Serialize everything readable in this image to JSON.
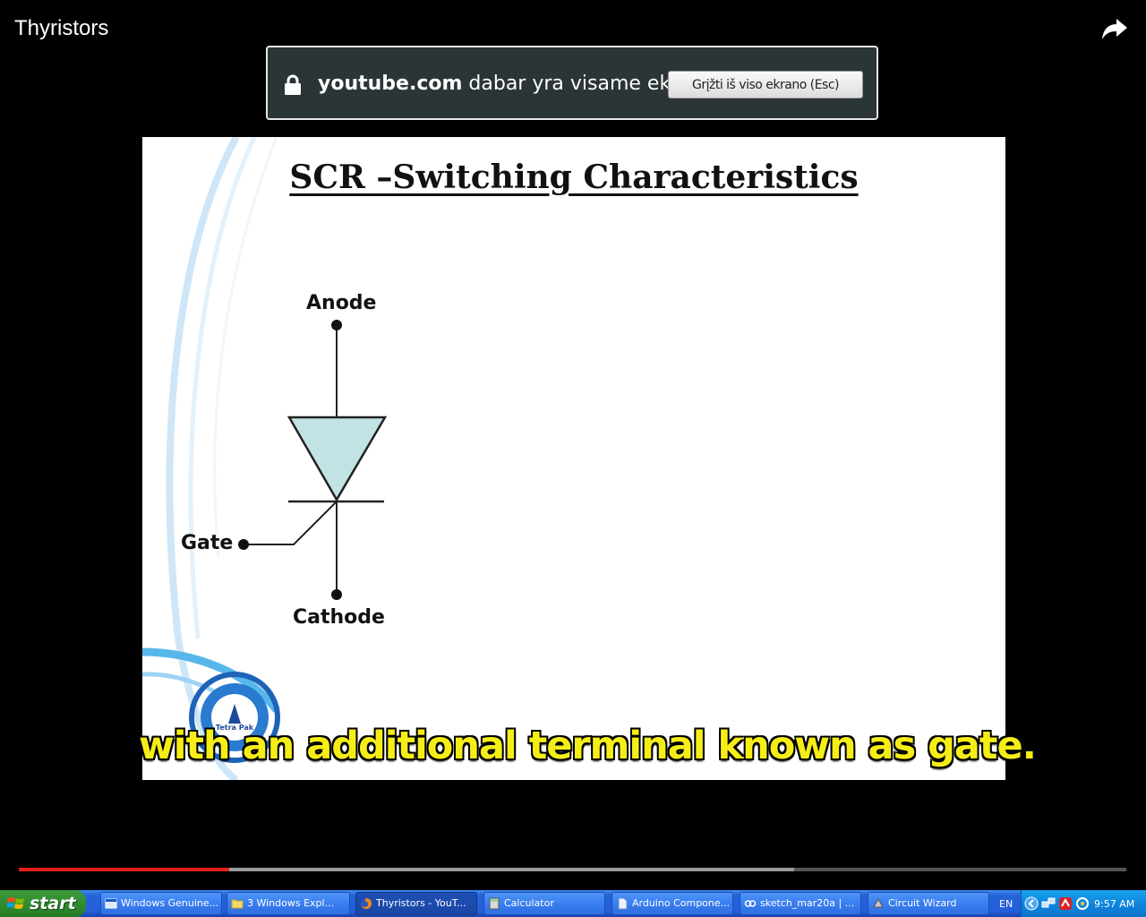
{
  "video": {
    "title": "Thyristors",
    "watched_fraction": 0.19,
    "buffered_fraction": 0.7
  },
  "fullscreen_notice": {
    "domain": "youtube.com",
    "message": "dabar yra visame ekrane",
    "exit_button": "Grįžti iš viso ekrano (Esc)"
  },
  "slide": {
    "title": "SCR –Switching Characteristics",
    "labels": {
      "anode": "Anode",
      "gate": "Gate",
      "cathode": "Cathode"
    },
    "logo_text": "Tetra Pak",
    "caption": "with an additional terminal known as gate."
  },
  "taskbar": {
    "start_label": "start",
    "items": [
      {
        "label": "Windows Genuine..."
      },
      {
        "label": "3 Windows Expl..."
      },
      {
        "label": "Thyristors - YouT..."
      },
      {
        "label": "Calculator"
      },
      {
        "label": "Arduino Compone..."
      },
      {
        "label": "sketch_mar20a | ..."
      },
      {
        "label": "Circuit Wizard"
      }
    ],
    "language": "EN",
    "clock": "9:57 AM"
  },
  "colors": {
    "caption_text": "#f5ee16",
    "progress_played": "#e62117",
    "scr_body_fill": "#c2e2e4",
    "taskbar_blue": "#245ddb",
    "start_green": "#2f8a2c"
  },
  "icons": {
    "share": "share-arrow-icon",
    "lock": "lock-icon",
    "start": "windows-flag-icon"
  }
}
